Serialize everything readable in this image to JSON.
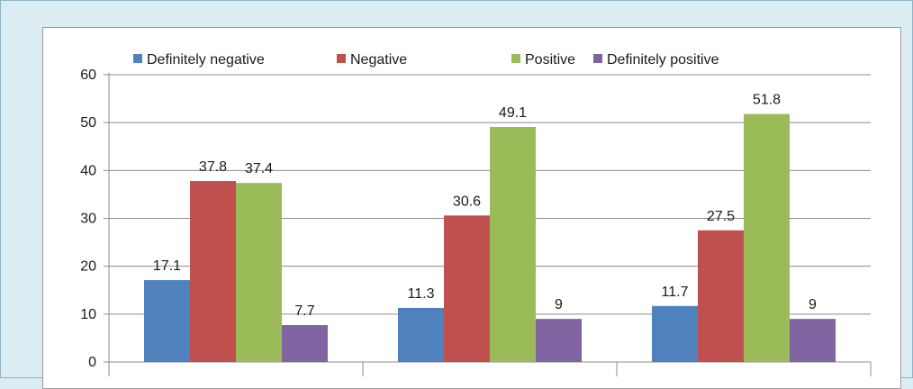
{
  "chart_data": {
    "type": "bar",
    "title": "",
    "xlabel": "",
    "ylabel": "",
    "ylim": [
      0,
      60
    ],
    "yticks": [
      0,
      10,
      20,
      30,
      40,
      50,
      60
    ],
    "grid": true,
    "legend_position": "top",
    "categories": [
      "",
      "",
      ""
    ],
    "series": [
      {
        "name": "Definitely negative",
        "color": "#4f81bd",
        "values": [
          17.1,
          11.3,
          11.7
        ]
      },
      {
        "name": "Negative",
        "color": "#c0504d",
        "values": [
          37.8,
          30.6,
          27.5
        ]
      },
      {
        "name": "Positive",
        "color": "#9bbb59",
        "values": [
          37.4,
          49.1,
          51.8
        ]
      },
      {
        "name": "Definitely positive",
        "color": "#8064a2",
        "values": [
          7.7,
          9,
          9
        ]
      }
    ]
  }
}
